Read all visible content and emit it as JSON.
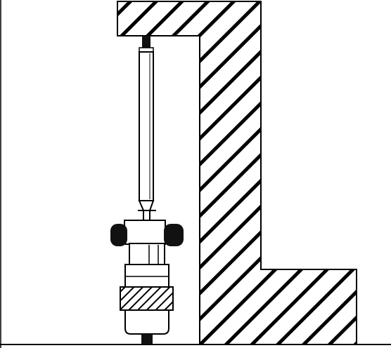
{
  "colors": {
    "background": "#ffffff",
    "stroke": "#000000",
    "hatch": "#000000",
    "fill": "#ffffff"
  },
  "parts": {
    "wall": "hatched-l-wall-section",
    "ground": "ground-line",
    "rod": "vertical-rod",
    "fixture": "clamp-fixture-with-knurled-ring"
  }
}
